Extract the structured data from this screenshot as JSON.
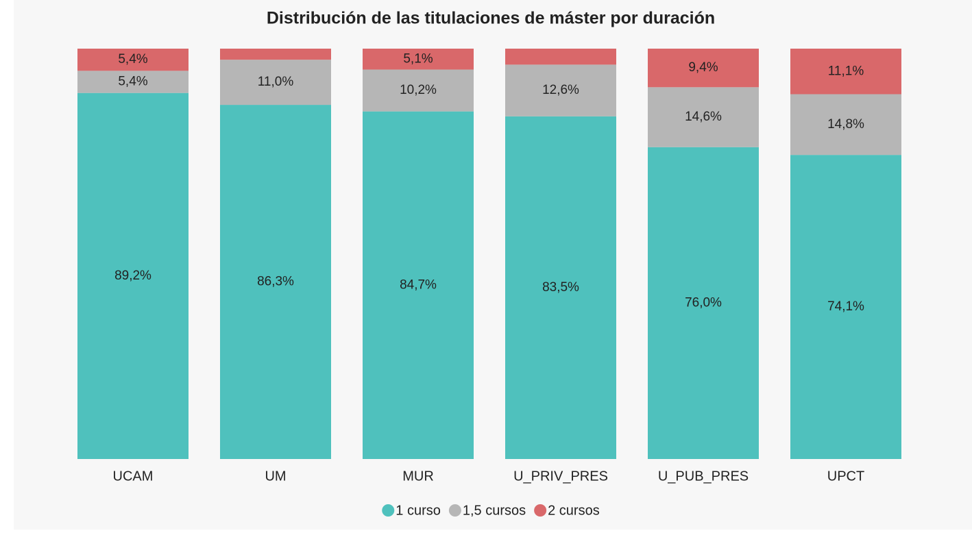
{
  "chart_data": {
    "type": "stacked_bar",
    "title": "Distribución de las titulaciones de máster por duración",
    "categories": [
      "UCAM",
      "UM",
      "MUR",
      "U_PRIV_PRES",
      "U_PUB_PRES",
      "UPCT"
    ],
    "ylim": [
      0,
      100
    ],
    "legend": "bottom",
    "series": [
      {
        "name": "1 curso",
        "color": "#4fc1bd",
        "values": [
          89.2,
          86.3,
          84.7,
          83.5,
          76.0,
          74.1
        ],
        "value_labels": [
          "89,2%",
          "86,3%",
          "84,7%",
          "83,5%",
          "76,0%",
          "74,1%"
        ]
      },
      {
        "name": "1,5 cursos",
        "color": "#b6b6b6",
        "values": [
          5.4,
          11.0,
          10.2,
          12.6,
          14.6,
          14.8
        ],
        "value_labels": [
          "5,4%",
          "11,0%",
          "10,2%",
          "12,6%",
          "14,6%",
          "14,8%"
        ]
      },
      {
        "name": "2 cursos",
        "color": "#d9686a",
        "values": [
          5.4,
          2.7,
          5.1,
          3.9,
          9.4,
          11.1
        ],
        "value_labels": [
          "5,4%",
          null,
          "5,1%",
          null,
          "9,4%",
          "11,1%"
        ]
      }
    ]
  }
}
